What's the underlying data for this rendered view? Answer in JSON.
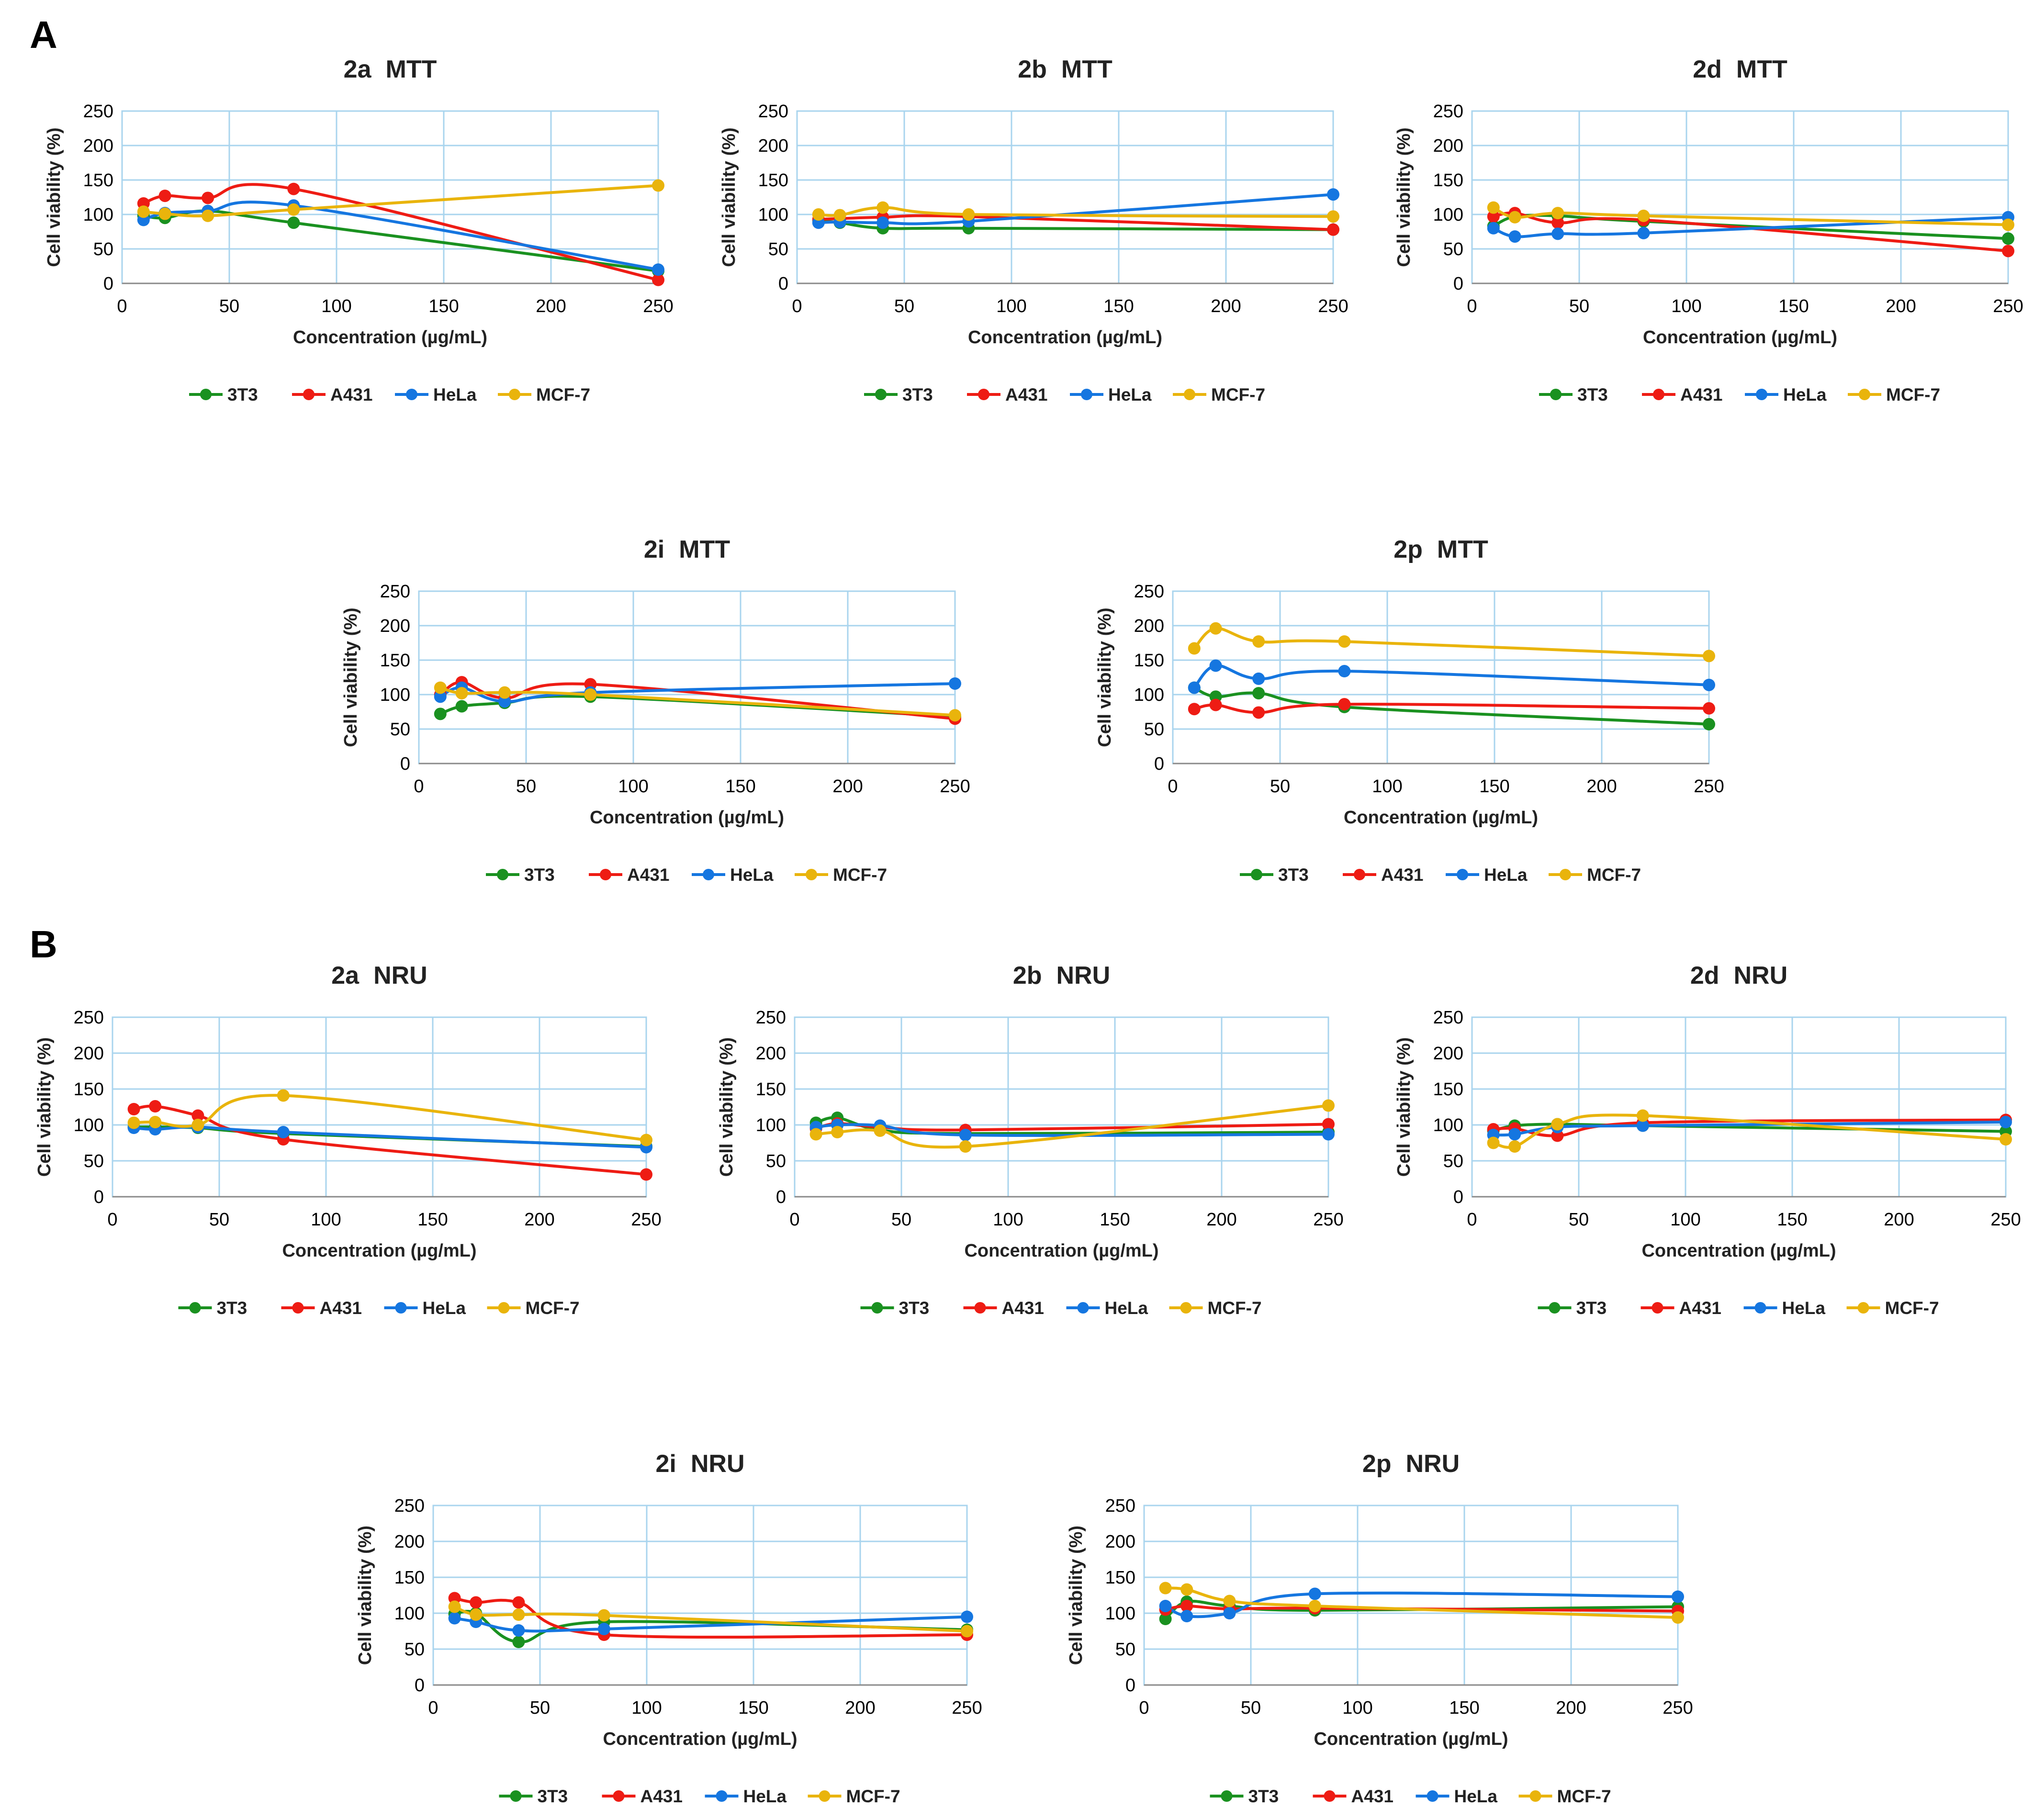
{
  "figure": {
    "panel_labels": [
      "A",
      "B"
    ]
  },
  "colors": {
    "3T3": "#1a9120",
    "A431": "#ee1c14",
    "HeLa": "#1576e0",
    "MCF-7": "#e9b40c",
    "grid": "#a9d4ee",
    "axis": "#8a8a8a"
  },
  "chart_data": [
    {
      "type": "line",
      "title_compound": "2a",
      "title_assay": "MTT",
      "xlabel": "Concentration (µg/mL)",
      "ylabel": "Cell viability (%)",
      "xlim": [
        0,
        250
      ],
      "ylim": [
        0,
        250
      ],
      "xticks": [
        0,
        50,
        100,
        150,
        200,
        250
      ],
      "yticks": [
        0,
        50,
        100,
        150,
        200,
        250
      ],
      "x": [
        10,
        20,
        40,
        80,
        250
      ],
      "series": [
        {
          "name": "3T3",
          "values": [
            98,
            95,
            105,
            88,
            18
          ]
        },
        {
          "name": "A431",
          "values": [
            116,
            127,
            124,
            137,
            5
          ]
        },
        {
          "name": "HeLa",
          "values": [
            92,
            102,
            105,
            113,
            20
          ]
        },
        {
          "name": "MCF-7",
          "values": [
            104,
            101,
            98,
            107,
            142
          ]
        }
      ],
      "legend": [
        "3T3",
        "A431",
        "HeLa",
        "MCF-7"
      ]
    },
    {
      "type": "line",
      "title_compound": "2b",
      "title_assay": "MTT",
      "xlabel": "Concentration (µg/mL)",
      "ylabel": "Cell viability (%)",
      "xlim": [
        0,
        250
      ],
      "ylim": [
        0,
        250
      ],
      "xticks": [
        0,
        50,
        100,
        150,
        200,
        250
      ],
      "yticks": [
        0,
        50,
        100,
        150,
        200,
        250
      ],
      "x": [
        10,
        20,
        40,
        80,
        250
      ],
      "series": [
        {
          "name": "3T3",
          "values": [
            91,
            88,
            80,
            80,
            78
          ]
        },
        {
          "name": "A431",
          "values": [
            93,
            94,
            96,
            97,
            78
          ]
        },
        {
          "name": "HeLa",
          "values": [
            88,
            89,
            88,
            90,
            129
          ]
        },
        {
          "name": "MCF-7",
          "values": [
            100,
            99,
            110,
            100,
            97
          ]
        }
      ],
      "legend": [
        "3T3",
        "A431",
        "HeLa",
        "MCF-7"
      ]
    },
    {
      "type": "line",
      "title_compound": "2d",
      "title_assay": "MTT",
      "xlabel": "Concentration (µg/mL)",
      "ylabel": "Cell viability (%)",
      "xlim": [
        0,
        250
      ],
      "ylim": [
        0,
        250
      ],
      "xticks": [
        0,
        50,
        100,
        150,
        200,
        250
      ],
      "yticks": [
        0,
        50,
        100,
        150,
        200,
        250
      ],
      "x": [
        10,
        20,
        40,
        80,
        250
      ],
      "series": [
        {
          "name": "3T3",
          "values": [
            83,
            97,
            98,
            90,
            65
          ]
        },
        {
          "name": "A431",
          "values": [
            97,
            102,
            88,
            92,
            47
          ]
        },
        {
          "name": "HeLa",
          "values": [
            80,
            68,
            72,
            73,
            96
          ]
        },
        {
          "name": "MCF-7",
          "values": [
            110,
            96,
            102,
            98,
            85
          ]
        }
      ],
      "legend": [
        "3T3",
        "A431",
        "HeLa",
        "MCF-7"
      ]
    },
    {
      "type": "line",
      "title_compound": "2i",
      "title_assay": "MTT",
      "xlabel": "Concentration (µg/mL)",
      "ylabel": "Cell viability (%)",
      "xlim": [
        0,
        250
      ],
      "ylim": [
        0,
        250
      ],
      "xticks": [
        0,
        50,
        100,
        150,
        200,
        250
      ],
      "yticks": [
        0,
        50,
        100,
        150,
        200,
        250
      ],
      "x": [
        10,
        20,
        40,
        80,
        250
      ],
      "series": [
        {
          "name": "3T3",
          "values": [
            72,
            83,
            88,
            97,
            68
          ]
        },
        {
          "name": "A431",
          "values": [
            100,
            118,
            95,
            115,
            65
          ]
        },
        {
          "name": "HeLa",
          "values": [
            97,
            110,
            90,
            103,
            116
          ]
        },
        {
          "name": "MCF-7",
          "values": [
            110,
            102,
            103,
            100,
            70
          ]
        }
      ],
      "legend": [
        "3T3",
        "A431",
        "HeLa",
        "MCF-7"
      ]
    },
    {
      "type": "line",
      "title_compound": "2p",
      "title_assay": "MTT",
      "xlabel": "Concentration (µg/mL)",
      "ylabel": "Cell viability (%)",
      "xlim": [
        0,
        250
      ],
      "ylim": [
        0,
        250
      ],
      "xticks": [
        0,
        50,
        100,
        150,
        200,
        250
      ],
      "yticks": [
        0,
        50,
        100,
        150,
        200,
        250
      ],
      "x": [
        10,
        20,
        40,
        80,
        250
      ],
      "series": [
        {
          "name": "3T3",
          "values": [
            110,
            97,
            102,
            82,
            57
          ]
        },
        {
          "name": "A431",
          "values": [
            79,
            85,
            74,
            86,
            80
          ]
        },
        {
          "name": "HeLa",
          "values": [
            110,
            142,
            123,
            134,
            114
          ]
        },
        {
          "name": "MCF-7",
          "values": [
            167,
            196,
            177,
            177,
            156
          ]
        }
      ],
      "legend": [
        "3T3",
        "A431",
        "HeLa",
        "MCF-7"
      ]
    },
    {
      "type": "line",
      "title_compound": "2a",
      "title_assay": "NRU",
      "xlabel": "Concentration (µg/mL)",
      "ylabel": "Cell viability (%)",
      "xlim": [
        0,
        250
      ],
      "ylim": [
        0,
        250
      ],
      "xticks": [
        0,
        50,
        100,
        150,
        200,
        250
      ],
      "yticks": [
        0,
        50,
        100,
        150,
        200,
        250
      ],
      "x": [
        10,
        20,
        40,
        80,
        250
      ],
      "series": [
        {
          "name": "3T3",
          "values": [
            97,
            97,
            96,
            88,
            70
          ]
        },
        {
          "name": "A431",
          "values": [
            122,
            126,
            113,
            80,
            31
          ]
        },
        {
          "name": "HeLa",
          "values": [
            96,
            94,
            97,
            90,
            69
          ]
        },
        {
          "name": "MCF-7",
          "values": [
            103,
            104,
            100,
            141,
            79
          ]
        }
      ],
      "legend": [
        "3T3",
        "A431",
        "HeLa",
        "MCF-7"
      ]
    },
    {
      "type": "line",
      "title_compound": "2b",
      "title_assay": "NRU",
      "xlabel": "Concentration (µg/mL)",
      "ylabel": "Cell viability (%)",
      "xlim": [
        0,
        250
      ],
      "ylim": [
        0,
        250
      ],
      "xticks": [
        0,
        50,
        100,
        150,
        200,
        250
      ],
      "yticks": [
        0,
        50,
        100,
        150,
        200,
        250
      ],
      "x": [
        10,
        20,
        40,
        80,
        250
      ],
      "series": [
        {
          "name": "3T3",
          "values": [
            103,
            110,
            93,
            88,
            90
          ]
        },
        {
          "name": "A431",
          "values": [
            95,
            102,
            97,
            93,
            101
          ]
        },
        {
          "name": "HeLa",
          "values": [
            97,
            100,
            99,
            86,
            87
          ]
        },
        {
          "name": "MCF-7",
          "values": [
            87,
            90,
            92,
            70,
            127
          ]
        }
      ],
      "legend": [
        "3T3",
        "A431",
        "HeLa",
        "MCF-7"
      ]
    },
    {
      "type": "line",
      "title_compound": "2d",
      "title_assay": "NRU",
      "xlabel": "Concentration (µg/mL)",
      "ylabel": "Cell viability (%)",
      "xlim": [
        0,
        250
      ],
      "ylim": [
        0,
        250
      ],
      "xticks": [
        0,
        50,
        100,
        150,
        200,
        250
      ],
      "yticks": [
        0,
        50,
        100,
        150,
        200,
        250
      ],
      "x": [
        10,
        20,
        40,
        80,
        250
      ],
      "series": [
        {
          "name": "3T3",
          "values": [
            92,
            99,
            101,
            99,
            91
          ]
        },
        {
          "name": "A431",
          "values": [
            94,
            95,
            85,
            103,
            107
          ]
        },
        {
          "name": "HeLa",
          "values": [
            86,
            87,
            97,
            99,
            104
          ]
        },
        {
          "name": "MCF-7",
          "values": [
            75,
            70,
            101,
            113,
            80
          ]
        }
      ],
      "legend": [
        "3T3",
        "A431",
        "HeLa",
        "MCF-7"
      ]
    },
    {
      "type": "line",
      "title_compound": "2i",
      "title_assay": "NRU",
      "xlabel": "Concentration (µg/mL)",
      "ylabel": "Cell viability (%)",
      "xlim": [
        0,
        250
      ],
      "ylim": [
        0,
        250
      ],
      "xticks": [
        0,
        50,
        100,
        150,
        200,
        250
      ],
      "yticks": [
        0,
        50,
        100,
        150,
        200,
        250
      ],
      "x": [
        10,
        20,
        40,
        80,
        250
      ],
      "series": [
        {
          "name": "3T3",
          "values": [
            99,
            100,
            60,
            88,
            77
          ]
        },
        {
          "name": "A431",
          "values": [
            121,
            115,
            115,
            70,
            70
          ]
        },
        {
          "name": "HeLa",
          "values": [
            93,
            88,
            76,
            78,
            95
          ]
        },
        {
          "name": "MCF-7",
          "values": [
            109,
            98,
            98,
            97,
            75
          ]
        }
      ],
      "legend": [
        "3T3",
        "A431",
        "HeLa",
        "MCF-7"
      ]
    },
    {
      "type": "line",
      "title_compound": "2p",
      "title_assay": "NRU",
      "xlabel": "Concentration (µg/mL)",
      "ylabel": "Cell viability (%)",
      "xlim": [
        0,
        250
      ],
      "ylim": [
        0,
        250
      ],
      "xticks": [
        0,
        50,
        100,
        150,
        200,
        250
      ],
      "yticks": [
        0,
        50,
        100,
        150,
        200,
        250
      ],
      "x": [
        10,
        20,
        40,
        80,
        250
      ],
      "series": [
        {
          "name": "3T3",
          "values": [
            92,
            116,
            110,
            104,
            109
          ]
        },
        {
          "name": "A431",
          "values": [
            105,
            110,
            106,
            107,
            103
          ]
        },
        {
          "name": "HeLa",
          "values": [
            110,
            96,
            100,
            127,
            123
          ]
        },
        {
          "name": "MCF-7",
          "values": [
            135,
            133,
            117,
            110,
            94
          ]
        }
      ],
      "legend": [
        "3T3",
        "A431",
        "HeLa",
        "MCF-7"
      ]
    }
  ]
}
